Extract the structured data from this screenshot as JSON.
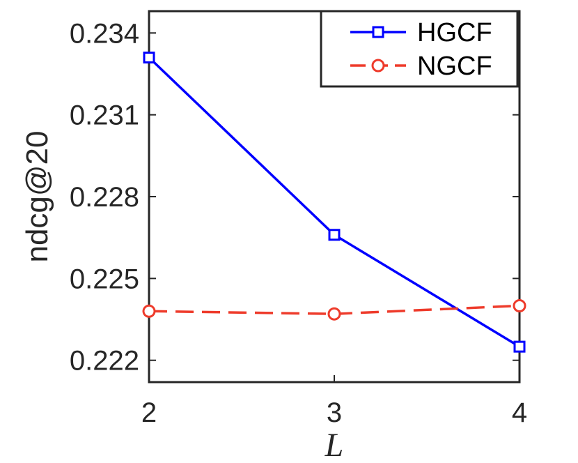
{
  "chart_data": {
    "type": "line",
    "title": "",
    "xlabel": "L",
    "ylabel": "ndcg@20",
    "x": [
      2,
      3,
      4
    ],
    "xlim": [
      2,
      4
    ],
    "ylim": [
      0.2212,
      0.2348
    ],
    "xticks": [
      2,
      3,
      4
    ],
    "xtick_labels": [
      "2",
      "3",
      "4"
    ],
    "yticks": [
      0.222,
      0.225,
      0.228,
      0.231,
      0.234
    ],
    "ytick_labels": [
      "0.222",
      "0.225",
      "0.228",
      "0.231",
      "0.234"
    ],
    "grid": false,
    "legend_position": "top-right",
    "series": [
      {
        "name": "HGCF",
        "values": [
          0.2331,
          0.2266,
          0.2225
        ],
        "color": "#0000ff",
        "line_style": "solid",
        "marker": "square"
      },
      {
        "name": "NGCF",
        "values": [
          0.2238,
          0.2237,
          0.224
        ],
        "color": "#ee3b2b",
        "line_style": "dashed",
        "marker": "circle"
      }
    ]
  }
}
